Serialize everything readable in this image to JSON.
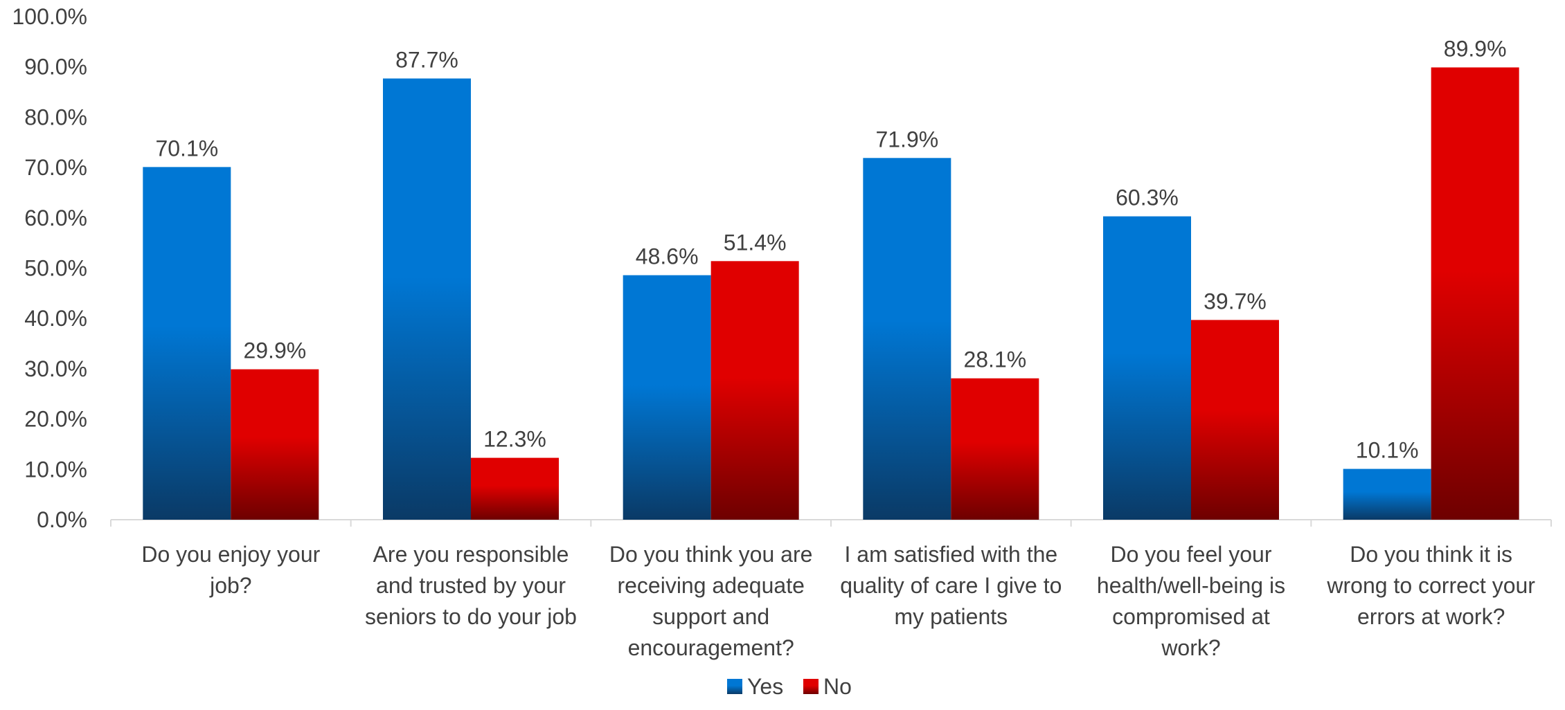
{
  "chart_data": {
    "type": "bar",
    "categories": [
      [
        "Do you enjoy your",
        "job?"
      ],
      [
        "Are you responsible",
        "and trusted by your",
        "seniors to do your job"
      ],
      [
        "Do you think you are",
        "receiving adequate",
        "support and",
        "encouragement?"
      ],
      [
        "I am satisfied with the",
        "quality of care I give to",
        "my patients"
      ],
      [
        "Do you feel your",
        "health/well-being is",
        "compromised at",
        "work?"
      ],
      [
        "Do you think it is",
        "wrong to correct your",
        "errors at work?"
      ]
    ],
    "series": [
      {
        "name": "Yes",
        "values": [
          70.1,
          87.7,
          48.6,
          71.9,
          60.3,
          10.1
        ],
        "color_top": "#0077d4",
        "color_bottom": "#0a3a66"
      },
      {
        "name": "No",
        "values": [
          29.9,
          12.3,
          51.4,
          28.1,
          39.7,
          89.9
        ],
        "color_top": "#e00000",
        "color_bottom": "#6e0000"
      }
    ],
    "data_labels": [
      [
        "70.1%",
        "87.7%",
        "48.6%",
        "71.9%",
        "60.3%",
        "10.1%"
      ],
      [
        "29.9%",
        "12.3%",
        "51.4%",
        "28.1%",
        "39.7%",
        "89.9%"
      ]
    ],
    "yticks": [
      "0.0%",
      "10.0%",
      "20.0%",
      "30.0%",
      "40.0%",
      "50.0%",
      "60.0%",
      "70.0%",
      "80.0%",
      "90.0%",
      "100.0%"
    ],
    "ylim": [
      0,
      100
    ],
    "title": "",
    "xlabel": "",
    "ylabel": "",
    "grid": false,
    "legend_position": "bottom-center"
  }
}
